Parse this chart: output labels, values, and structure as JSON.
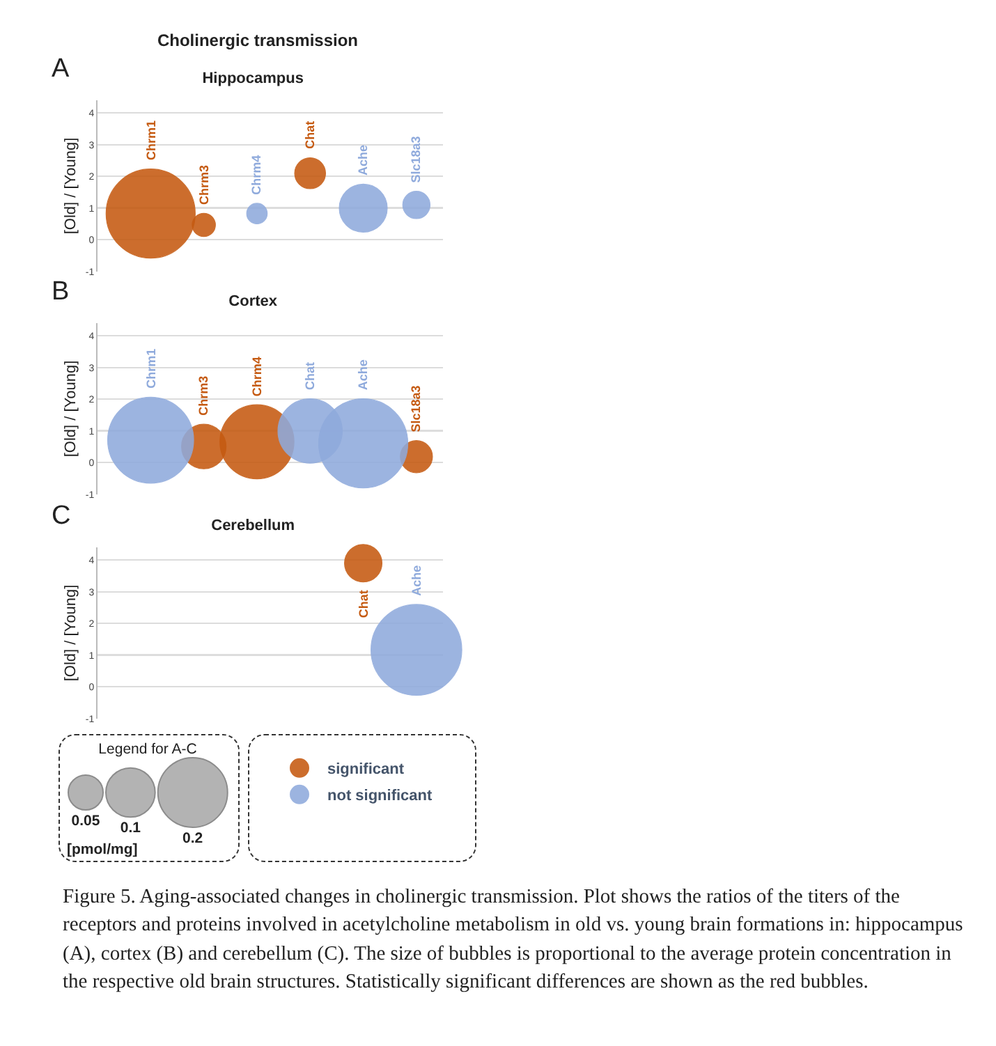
{
  "chart_data": [
    {
      "type": "bubble",
      "title": "Hippocampus",
      "ylabel": "[Old] / [Young]",
      "annotations": [
        "A",
        "Cholinergic transmission"
      ],
      "categories": [
        "Chrm1",
        "Chrm3",
        "Chrm4",
        "Chat",
        "Ache",
        "Slc18a3"
      ],
      "series": [
        {
          "color": "#c55a11",
          "values": [
            0.83,
            0.47,
            null,
            2.1,
            null,
            null
          ],
          "sizes": [
            1,
            0.068,
            null,
            0.12,
            null,
            null
          ]
        },
        {
          "color": "#8faadc",
          "values": [
            null,
            null,
            0.83,
            null,
            1.0,
            1.1
          ],
          "sizes": [
            null,
            null,
            0.053,
            null,
            0.29,
            0.094
          ]
        }
      ],
      "ylim": [
        -1,
        4.4
      ],
      "yticks": [
        -1,
        0,
        1,
        2,
        3,
        4
      ],
      "grid": "y",
      "marker": "circle",
      "tick_labels": "y",
      "ref_lines": [
        {
          "axis": "y",
          "value": 1,
          "color": "#808080"
        }
      ]
    },
    {
      "type": "bubble",
      "title": "Cortex",
      "ylabel": "[Old] / [Young]",
      "annotations": [
        "B"
      ],
      "categories": [
        "Chrm1",
        "Chrm3",
        "Chrm4",
        "Chat",
        "Ache",
        "Slc18a3"
      ],
      "series": [
        {
          "color": "#c55a11",
          "values": [
            null,
            0.51,
            0.66,
            null,
            null,
            0.19
          ],
          "sizes": [
            null,
            0.25,
            0.69,
            null,
            null,
            0.13
          ]
        },
        {
          "color": "#8faadc",
          "values": [
            0.71,
            null,
            null,
            1.0,
            0.61,
            null
          ],
          "sizes": [
            0.93,
            null,
            null,
            0.52,
            1,
            null
          ]
        }
      ],
      "ylim": [
        -1,
        4.4
      ],
      "yticks": [
        -1,
        0,
        1,
        2,
        3,
        4
      ],
      "grid": "y",
      "marker": "circle",
      "tick_labels": "y",
      "ref_lines": [
        {
          "axis": "y",
          "value": 1,
          "color": "#808080"
        }
      ]
    },
    {
      "type": "bubble",
      "title": "Cerebellum",
      "ylabel": "[Old] / [Young]",
      "annotations": [
        "C",
        "[pmol/mg]",
        "Figure 5. Aging-associated changes in cholinergic transmission. Plot shows the ratios of the titers of the receptors and proteins involved in acetylcholine metabolism in old vs. young brain formations in: hippocampus (A), cortex (B) and cerebellum (C). The size of bubbles is proportional to the average protein concentration in the respective old brain structures. Statistically significant differences are shown as the red bubbles."
      ],
      "categories": [
        null,
        null,
        null,
        null,
        "Chat",
        "Ache"
      ],
      "series": [
        {
          "name": "significant",
          "color": "#c55a11",
          "values": [
            null,
            null,
            null,
            null,
            3.9,
            null
          ],
          "sizes": [
            null,
            null,
            null,
            null,
            0.058,
            null
          ]
        },
        {
          "name": "not significant",
          "color": "#8faadc",
          "values": [
            null,
            null,
            null,
            null,
            null,
            1.17
          ],
          "sizes": [
            null,
            null,
            null,
            null,
            null,
            0.34
          ]
        }
      ],
      "ylim": [
        -1,
        4.4
      ],
      "yticks": [
        -1,
        0,
        1,
        2,
        3,
        4
      ],
      "grid": "y",
      "marker": "circle",
      "tick_labels": "y",
      "ref_lines": [
        {
          "axis": "y",
          "value": 1,
          "color": "#808080"
        }
      ],
      "legend": "bottom",
      "legend_title": "Legend for A-C",
      "size_legend": [
        0.05,
        0.1,
        0.2
      ]
    }
  ]
}
